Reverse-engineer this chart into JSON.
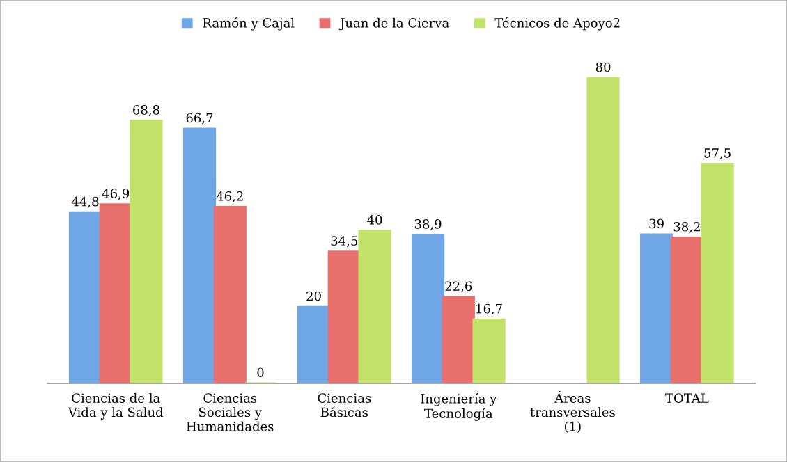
{
  "chart_data": {
    "type": "bar",
    "categories": [
      "Ciencias de la\nVida y la Salud",
      "Ciencias\nSociales y\nHumanidades",
      "Ciencias\nBásicas",
      "Ingeniería y\nTecnología",
      "Áreas\ntransversales\n(1)",
      "TOTAL"
    ],
    "series": [
      {
        "name": "Ramón y Cajal",
        "color": "#6ea6e6",
        "values": [
          44.8,
          66.7,
          20,
          38.9,
          null,
          39
        ],
        "value_labels": [
          "44,8",
          "66,7",
          "20",
          "38,9",
          null,
          "39"
        ]
      },
      {
        "name": "Juan de la Cierva",
        "color": "#e8706c",
        "values": [
          46.9,
          46.2,
          34.5,
          22.6,
          null,
          38.2
        ],
        "value_labels": [
          "46,9",
          "46,2",
          "34,5",
          "22,6",
          null,
          "38,2"
        ]
      },
      {
        "name": "Técnicos de Apoyo2",
        "color": "#c2e26a",
        "values": [
          68.8,
          0,
          40,
          16.7,
          80,
          57.5
        ],
        "value_labels": [
          "68,8",
          "0",
          "40",
          "16,7",
          "80",
          "57,5"
        ]
      }
    ],
    "legend": "top",
    "grid": false
  }
}
